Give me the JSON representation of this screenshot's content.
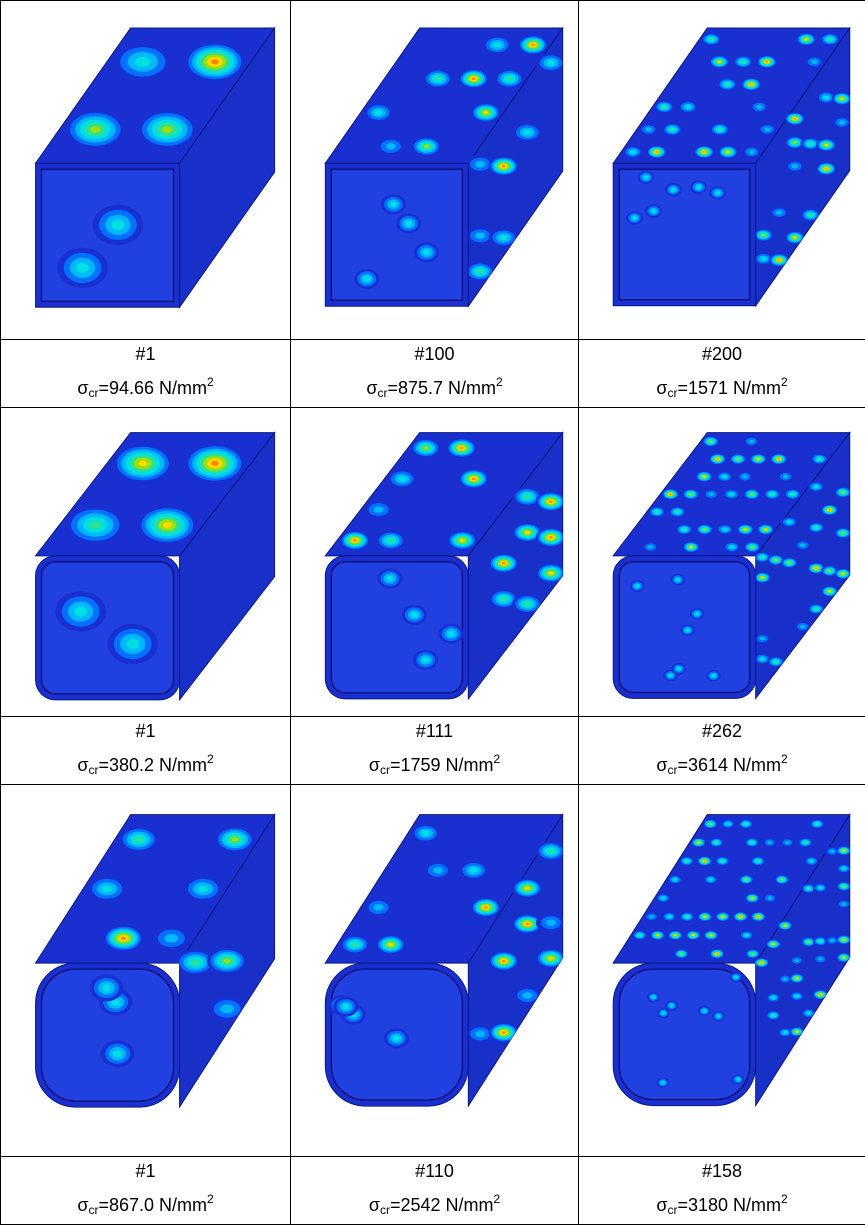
{
  "figure": {
    "rows": [
      [
        {
          "mode": "#1",
          "sigma": "σ",
          "sub": "cr",
          "text": "=94.66 N/mm",
          "sup": "2"
        },
        {
          "mode": "#100",
          "sigma": "σ",
          "sub": "cr",
          "text": "=875.7 N/mm",
          "sup": "2"
        },
        {
          "mode": "#200",
          "sigma": "σ",
          "sub": "cr",
          "text": "=1571 N/mm",
          "sup": "2"
        }
      ],
      [
        {
          "mode": "#1",
          "sigma": "σ",
          "sub": "cr",
          "text": "=380.2 N/mm",
          "sup": "2"
        },
        {
          "mode": "#111",
          "sigma": "σ",
          "sub": "cr",
          "text": "=1759 N/mm",
          "sup": "2"
        },
        {
          "mode": "#262",
          "sigma": "σ",
          "sub": "cr",
          "text": "=3614 N/mm",
          "sup": "2"
        }
      ],
      [
        {
          "mode": "#1",
          "sigma": "σ",
          "sub": "cr",
          "text": "=867.0 N/mm",
          "sup": "2"
        },
        {
          "mode": "#110",
          "sigma": "σ",
          "sub": "cr",
          "text": "=2542 N/mm",
          "sup": "2"
        },
        {
          "mode": "#158",
          "sigma": "σ",
          "sub": "cr",
          "text": "=3180 N/mm",
          "sup": "2"
        }
      ]
    ]
  }
}
